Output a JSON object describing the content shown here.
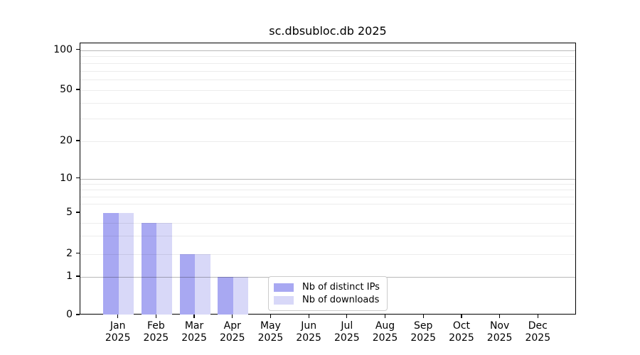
{
  "chart_data": {
    "type": "bar",
    "title": "sc.dbsubloc.db 2025",
    "categories": [
      "Jan",
      "Feb",
      "Mar",
      "Apr",
      "May",
      "Jun",
      "Jul",
      "Aug",
      "Sep",
      "Oct",
      "Nov",
      "Dec"
    ],
    "category_year": "2025",
    "series": [
      {
        "name": "Nb of distinct IPs",
        "color": "#a8a8f2",
        "values": [
          5,
          4,
          2,
          1,
          0,
          0,
          0,
          0,
          0,
          0,
          0,
          0
        ]
      },
      {
        "name": "Nb of downloads",
        "color": "#d8d8f8",
        "values": [
          5,
          4,
          2,
          1,
          0,
          0,
          0,
          0,
          0,
          0,
          0,
          0
        ]
      }
    ],
    "yscale": "log-with-zero",
    "ylim": [
      0,
      112
    ],
    "ytick_labels": [
      "0",
      "1",
      "2",
      "5",
      "10",
      "20",
      "50",
      "100"
    ],
    "ytick_values": [
      0,
      1,
      2,
      5,
      10,
      20,
      50,
      100
    ],
    "y_major_gridlines": [
      1,
      10,
      100
    ],
    "y_minor_gridlines": [
      2,
      3,
      4,
      6,
      7,
      8,
      9,
      20,
      30,
      40,
      50,
      60,
      70,
      80,
      90
    ],
    "grid": true,
    "legend_position": "lower center",
    "colors": {
      "background": "#ffffff",
      "spine": "#000000",
      "text": "#000000",
      "major_grid": "#b8b8b8",
      "minor_grid": "#ececec",
      "legend_border": "#cccccc"
    }
  }
}
